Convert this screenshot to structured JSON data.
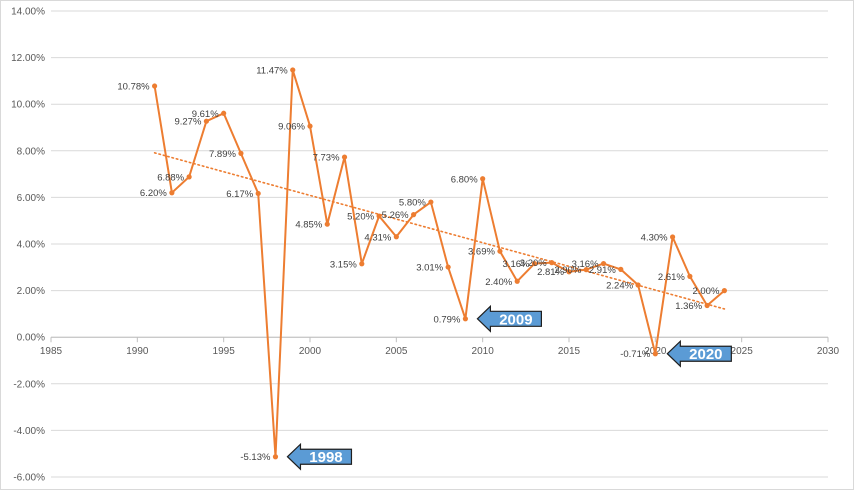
{
  "chart_data": {
    "type": "scatter",
    "title": "",
    "xlabel": "",
    "ylabel": "",
    "xlim": [
      1985,
      2030
    ],
    "ylim": [
      -6,
      14
    ],
    "x_ticks": [
      "1985",
      "1990",
      "1995",
      "2000",
      "2005",
      "2010",
      "2015",
      "2020",
      "2025",
      "2030"
    ],
    "y_ticks": [
      "14.00%",
      "12.00%",
      "10.00%",
      "8.00%",
      "6.00%",
      "4.00%",
      "2.00%",
      "0.00%",
      "-2.00%",
      "-4.00%",
      "-6.00%"
    ],
    "grid": "horizontal",
    "legend": "none",
    "series_color": "#ED7D31",
    "callout_color": "#5B9BD5",
    "series": [
      {
        "points": [
          {
            "x": 1991,
            "y": 10.78,
            "label": "10.78%"
          },
          {
            "x": 1992,
            "y": 6.2,
            "label": "6.20%"
          },
          {
            "x": 1993,
            "y": 6.88,
            "label": "6.88%"
          },
          {
            "x": 1994,
            "y": 9.27,
            "label": "9.27%"
          },
          {
            "x": 1995,
            "y": 9.61,
            "label": "9.61%"
          },
          {
            "x": 1996,
            "y": 7.89,
            "label": "7.89%"
          },
          {
            "x": 1997,
            "y": 6.17,
            "label": "6.17%"
          },
          {
            "x": 1998,
            "y": -5.13,
            "label": "-5.13%"
          },
          {
            "x": 1999,
            "y": 11.47,
            "label": "11.47%"
          },
          {
            "x": 2000,
            "y": 9.06,
            "label": "9.06%"
          },
          {
            "x": 2001,
            "y": 4.85,
            "label": "4.85%"
          },
          {
            "x": 2002,
            "y": 7.73,
            "label": "7.73%"
          },
          {
            "x": 2003,
            "y": 3.15,
            "label": "3.15%"
          },
          {
            "x": 2004,
            "y": 5.2,
            "label": "5.20%"
          },
          {
            "x": 2005,
            "y": 4.31,
            "label": "4.31%"
          },
          {
            "x": 2006,
            "y": 5.26,
            "label": "5.26%"
          },
          {
            "x": 2007,
            "y": 5.8,
            "label": "5.80%"
          },
          {
            "x": 2008,
            "y": 3.01,
            "label": "3.01%"
          },
          {
            "x": 2009,
            "y": 0.79,
            "label": "0.79%"
          },
          {
            "x": 2010,
            "y": 6.8,
            "label": "6.80%"
          },
          {
            "x": 2011,
            "y": 3.69,
            "label": "3.69%"
          },
          {
            "x": 2012,
            "y": 2.4,
            "label": "2.40%"
          },
          {
            "x": 2013,
            "y": 3.16,
            "label": "3.16%"
          },
          {
            "x": 2014,
            "y": 3.2,
            "label": "3.20%"
          },
          {
            "x": 2015,
            "y": 2.81,
            "label": "2.81%"
          },
          {
            "x": 2016,
            "y": 2.9,
            "label": "2.90%"
          },
          {
            "x": 2017,
            "y": 3.16,
            "label": "3.16%"
          },
          {
            "x": 2018,
            "y": 2.91,
            "label": "2.91%"
          },
          {
            "x": 2019,
            "y": 2.24,
            "label": "2.24%"
          },
          {
            "x": 2020,
            "y": -0.71,
            "label": "-0.71%"
          },
          {
            "x": 2021,
            "y": 4.3,
            "label": "4.30%"
          },
          {
            "x": 2022,
            "y": 2.61,
            "label": "2.61%"
          },
          {
            "x": 2023,
            "y": 1.36,
            "label": "1.36%"
          },
          {
            "x": 2024,
            "y": 2.0,
            "label": "2.00%"
          }
        ]
      }
    ],
    "trendline": {
      "type": "linear",
      "style": "dotted",
      "x_start": 1991,
      "x_end": 2024
    },
    "annotations": [
      {
        "text": "1998",
        "target_x": 1998,
        "target_y": -5.13
      },
      {
        "text": "2009",
        "target_x": 2009,
        "target_y": 0.79
      },
      {
        "text": "2020",
        "target_x": 2020,
        "target_y": -0.71
      }
    ]
  }
}
